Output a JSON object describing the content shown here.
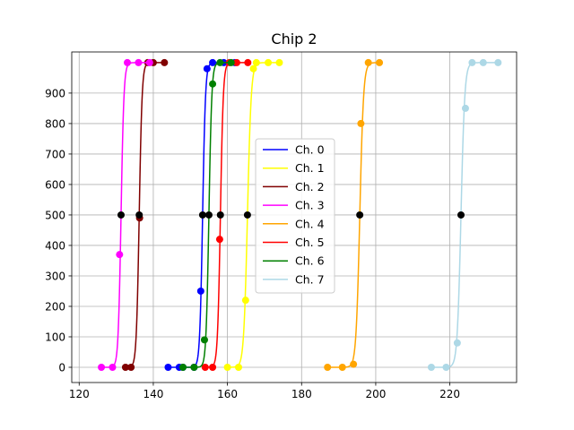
{
  "chart_data": {
    "type": "line",
    "title": "Chip 2",
    "xlabel": "",
    "ylabel": "",
    "xlim": [
      118,
      238
    ],
    "ylim": [
      -50,
      1035
    ],
    "xticks": [
      120,
      140,
      160,
      180,
      200,
      220
    ],
    "yticks": [
      0,
      100,
      200,
      300,
      400,
      500,
      600,
      700,
      800,
      900
    ],
    "grid": true,
    "legend": "center",
    "series": [
      {
        "name": "Ch. 0",
        "color": "#0000ff",
        "x0": 153.3,
        "k": 2.6,
        "points": [
          [
            144,
            0
          ],
          [
            147,
            0
          ],
          [
            148,
            0
          ],
          [
            151,
            0
          ],
          [
            152.8,
            250
          ],
          [
            154.5,
            980
          ],
          [
            156,
            1000
          ],
          [
            159,
            1000
          ],
          [
            162,
            1000
          ]
        ],
        "mid": [
          153.3,
          500
        ]
      },
      {
        "name": "Ch. 1",
        "color": "#ffff00",
        "x0": 165.4,
        "k": 2.0,
        "points": [
          [
            160,
            0
          ],
          [
            163,
            0
          ],
          [
            164.9,
            220
          ],
          [
            167,
            980
          ],
          [
            167.8,
            1000
          ],
          [
            171,
            1000
          ],
          [
            174,
            1000
          ]
        ],
        "mid": [
          165.4,
          500
        ]
      },
      {
        "name": "Ch. 2",
        "color": "#800000",
        "x0": 136.2,
        "k": 2.6,
        "points": [
          [
            132.5,
            0
          ],
          [
            134,
            0
          ],
          [
            136.3,
            490
          ],
          [
            138.5,
            1000
          ],
          [
            140,
            1000
          ],
          [
            143,
            1000
          ]
        ],
        "mid": [
          136.2,
          500
        ]
      },
      {
        "name": "Ch. 3",
        "color": "#ff00ff",
        "x0": 131.3,
        "k": 2.6,
        "points": [
          [
            126,
            0
          ],
          [
            129,
            0
          ],
          [
            130.9,
            370
          ],
          [
            133,
            1000
          ],
          [
            136,
            1000
          ],
          [
            139,
            1000
          ]
        ],
        "mid": [
          131.3,
          500
        ]
      },
      {
        "name": "Ch. 4",
        "color": "#ffa500",
        "x0": 195.7,
        "k": 2.0,
        "points": [
          [
            187,
            0
          ],
          [
            191,
            0
          ],
          [
            194,
            10
          ],
          [
            196,
            800
          ],
          [
            198,
            1000
          ],
          [
            201,
            1000
          ]
        ],
        "mid": [
          195.7,
          500
        ]
      },
      {
        "name": "Ch. 5",
        "color": "#ff0000",
        "x0": 158.1,
        "k": 2.6,
        "points": [
          [
            154,
            0
          ],
          [
            156,
            0
          ],
          [
            157.9,
            420
          ],
          [
            160.5,
            1000
          ],
          [
            162.5,
            1000
          ],
          [
            165.5,
            1000
          ]
        ],
        "mid": [
          158.1,
          500
        ]
      },
      {
        "name": "Ch. 6",
        "color": "#008000",
        "x0": 155.0,
        "k": 2.6,
        "points": [
          [
            148,
            0
          ],
          [
            151,
            0
          ],
          [
            153.8,
            90
          ],
          [
            156,
            930
          ],
          [
            158,
            1000
          ],
          [
            161,
            1000
          ]
        ],
        "mid": [
          155.0,
          500
        ]
      },
      {
        "name": "Ch. 7",
        "color": "#add8e6",
        "x0": 223.0,
        "k": 2.0,
        "points": [
          [
            215,
            0
          ],
          [
            219,
            0
          ],
          [
            222,
            80
          ],
          [
            224.2,
            850
          ],
          [
            226,
            1000
          ],
          [
            229,
            1000
          ],
          [
            233,
            1000
          ]
        ],
        "mid": [
          223.0,
          500
        ]
      }
    ]
  }
}
